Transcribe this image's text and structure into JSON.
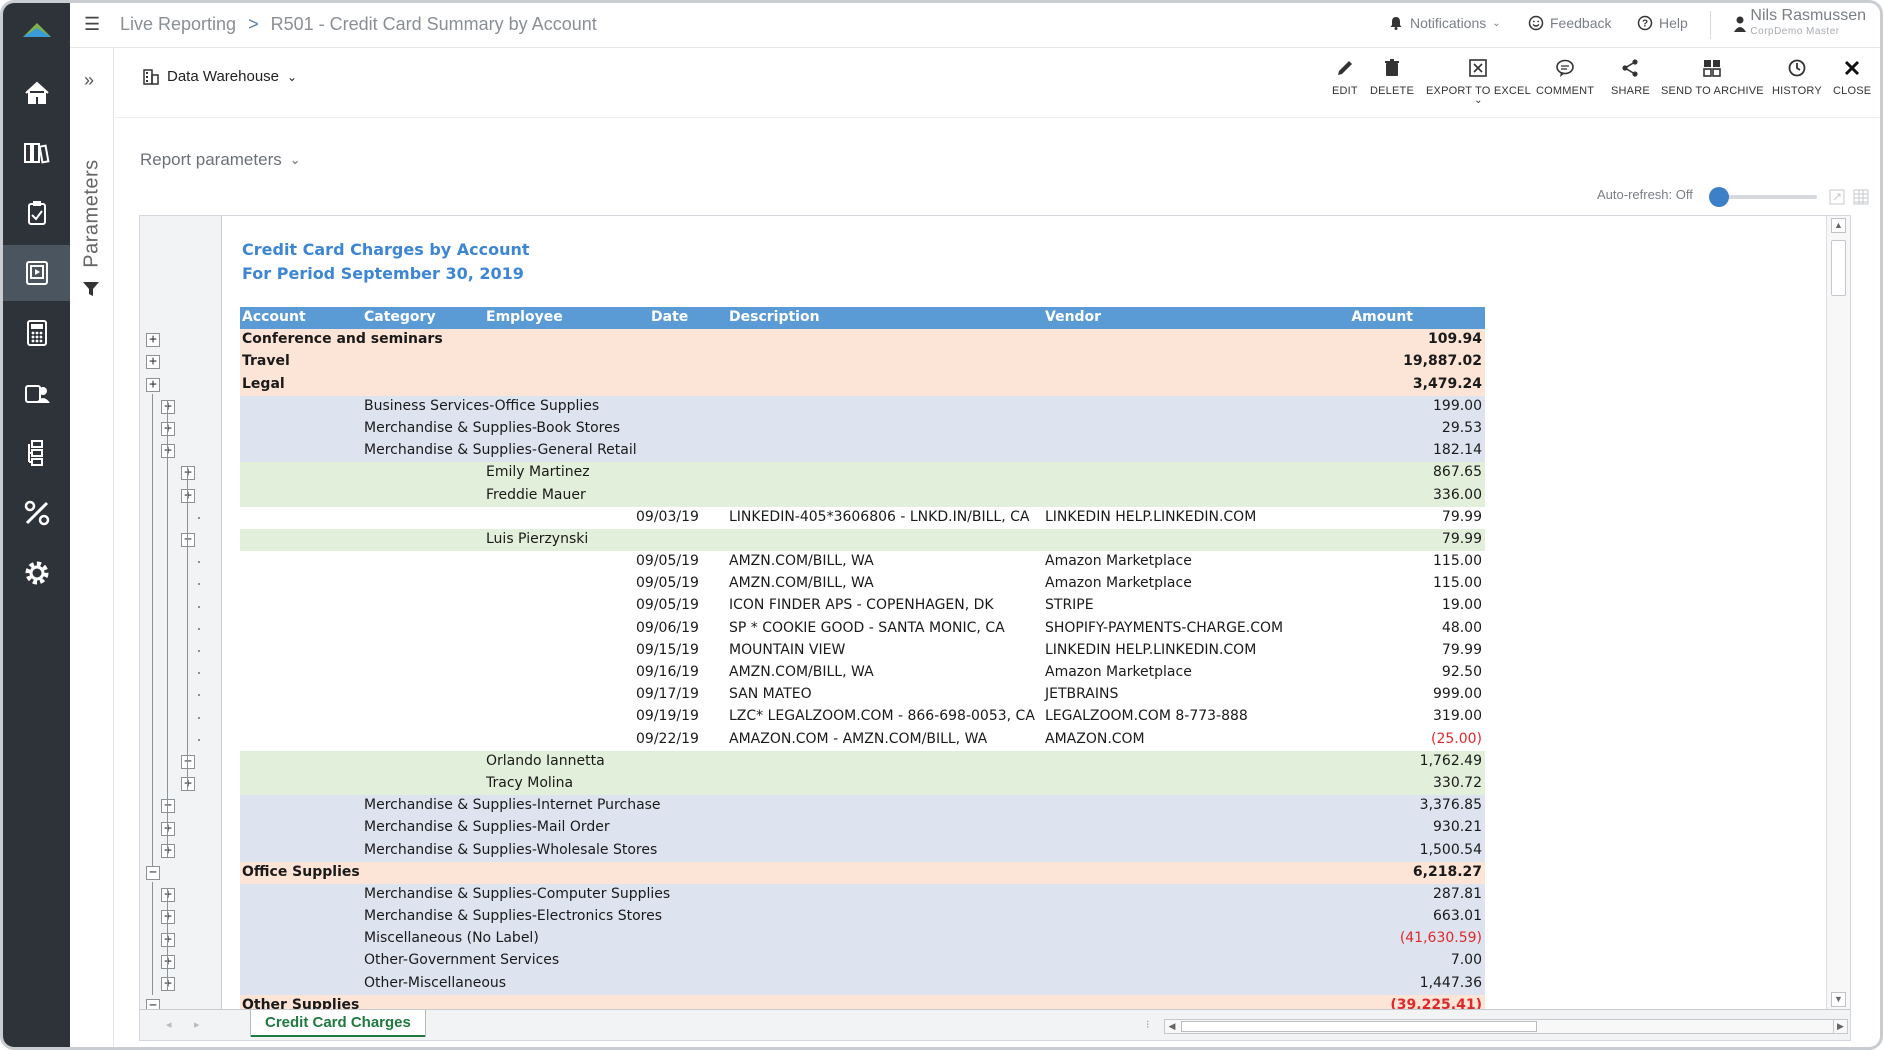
{
  "header": {
    "app_section": "Live Reporting",
    "breadcrumb_sep": ">",
    "report_title": "R501 - Credit Card Summary by Account",
    "notifications": "Notifications",
    "feedback": "Feedback",
    "help": "Help",
    "user_name": "Nils Rasmussen",
    "user_company": "CorpDemo Master"
  },
  "sidebar": {
    "items": [
      "home-icon",
      "library-icon",
      "clipboard-icon",
      "report-icon",
      "calculator-icon",
      "users-icon",
      "hierarchy-icon",
      "tools-icon",
      "settings-icon"
    ],
    "active_index": 3
  },
  "params_panel": {
    "label": "Parameters"
  },
  "toolbar": {
    "datasource": "Data Warehouse",
    "actions": [
      "EDIT",
      "DELETE",
      "EXPORT TO EXCEL",
      "COMMENT",
      "SHARE",
      "SEND TO ARCHIVE",
      "HISTORY",
      "CLOSE"
    ]
  },
  "report_params_label": "Report parameters",
  "auto_refresh_label": "Auto-refresh: Off",
  "report": {
    "title": "Credit Card Charges by Account",
    "subtitle": "For Period September 30, 2019",
    "columns": [
      "Account",
      "Category",
      "Employee",
      "Date",
      "Description",
      "Vendor",
      "Amount"
    ],
    "rows": [
      {
        "level": 1,
        "text": "Conference and seminars",
        "amount": "109.94",
        "neg": false,
        "toggle": "+"
      },
      {
        "level": 1,
        "text": "Travel",
        "amount": "19,887.02",
        "neg": false,
        "toggle": "+"
      },
      {
        "level": 1,
        "text": "Legal",
        "amount": "3,479.24",
        "neg": false,
        "toggle": "+"
      },
      {
        "level": 2,
        "text": "Business Services-Office Supplies",
        "amount": "199.00",
        "neg": false,
        "toggle": "+"
      },
      {
        "level": 2,
        "text": "Merchandise & Supplies-Book Stores",
        "amount": "29.53",
        "neg": false,
        "toggle": "+"
      },
      {
        "level": 2,
        "text": "Merchandise & Supplies-General Retail",
        "amount": "182.14",
        "neg": false,
        "toggle": "+"
      },
      {
        "level": 3,
        "text": "Emily Martinez",
        "amount": "867.65",
        "neg": false,
        "toggle": "+"
      },
      {
        "level": 3,
        "text": "Freddie Mauer",
        "amount": "336.00",
        "neg": false,
        "toggle": "+"
      },
      {
        "level": 4,
        "date": "09/03/19",
        "desc": "LINKEDIN-405*3606806 - LNKD.IN/BILL, CA",
        "vendor": "LINKEDIN   HELP.LINKEDIN.COM",
        "amount": "79.99",
        "neg": false
      },
      {
        "level": 3,
        "text": "Luis Pierzynski",
        "amount": "79.99",
        "neg": false,
        "toggle": "−"
      },
      {
        "level": 4,
        "date": "09/05/19",
        "desc": "AMZN.COM/BILL, WA",
        "vendor": "Amazon Marketplace",
        "amount": "115.00",
        "neg": false
      },
      {
        "level": 4,
        "date": "09/05/19",
        "desc": "AMZN.COM/BILL, WA",
        "vendor": "Amazon Marketplace",
        "amount": "115.00",
        "neg": false
      },
      {
        "level": 4,
        "date": "09/05/19",
        "desc": "ICON FINDER APS - COPENHAGEN, DK",
        "vendor": "STRIPE",
        "amount": "19.00",
        "neg": false
      },
      {
        "level": 4,
        "date": "09/06/19",
        "desc": "SP * COOKIE GOOD - SANTA MONIC, CA",
        "vendor": "SHOPIFY-PAYMENTS-CHARGE.COM",
        "amount": "48.00",
        "neg": false
      },
      {
        "level": 4,
        "date": "09/15/19",
        "desc": "MOUNTAIN VIEW",
        "vendor": "LINKEDIN   HELP.LINKEDIN.COM",
        "amount": "79.99",
        "neg": false
      },
      {
        "level": 4,
        "date": "09/16/19",
        "desc": "AMZN.COM/BILL, WA",
        "vendor": "Amazon Marketplace",
        "amount": "92.50",
        "neg": false
      },
      {
        "level": 4,
        "date": "09/17/19",
        "desc": "SAN MATEO",
        "vendor": "JETBRAINS",
        "amount": "999.00",
        "neg": false
      },
      {
        "level": 4,
        "date": "09/19/19",
        "desc": "LZC* LEGALZOOM.COM - 866-698-0053, CA",
        "vendor": "LEGALZOOM.COM  8-773-888",
        "amount": "319.00",
        "neg": false
      },
      {
        "level": 4,
        "date": "09/22/19",
        "desc": "AMAZON.COM - AMZN.COM/BILL, WA",
        "vendor": "AMAZON.COM",
        "amount": "(25.00)",
        "neg": true
      },
      {
        "level": 3,
        "text": "Orlando Iannetta",
        "amount": "1,762.49",
        "neg": false,
        "toggle": "−"
      },
      {
        "level": 3,
        "text": "Tracy Molina",
        "amount": "330.72",
        "neg": false,
        "toggle": "+"
      },
      {
        "level": 2,
        "text": "Merchandise & Supplies-Internet Purchase",
        "amount": "3,376.85",
        "neg": false,
        "toggle": "−"
      },
      {
        "level": 2,
        "text": "Merchandise & Supplies-Mail Order",
        "amount": "930.21",
        "neg": false,
        "toggle": "+"
      },
      {
        "level": 2,
        "text": "Merchandise & Supplies-Wholesale Stores",
        "amount": "1,500.54",
        "neg": false,
        "toggle": "+"
      },
      {
        "level": 1,
        "text": "Office Supplies",
        "amount": "6,218.27",
        "neg": false,
        "toggle": "−"
      },
      {
        "level": 2,
        "text": "Merchandise & Supplies-Computer Supplies",
        "amount": "287.81",
        "neg": false,
        "toggle": "+"
      },
      {
        "level": 2,
        "text": "Merchandise & Supplies-Electronics Stores",
        "amount": "663.01",
        "neg": false,
        "toggle": "+"
      },
      {
        "level": 2,
        "text": "Miscellaneous (No Label)",
        "amount": "(41,630.59)",
        "neg": true,
        "toggle": "+"
      },
      {
        "level": 2,
        "text": "Other-Government Services",
        "amount": "7.00",
        "neg": false,
        "toggle": "+"
      },
      {
        "level": 2,
        "text": "Other-Miscellaneous",
        "amount": "1,447.36",
        "neg": false,
        "toggle": "+"
      },
      {
        "level": 1,
        "text": "Other Supplies",
        "amount": "(39,225.41)",
        "neg": true,
        "toggle": "−"
      }
    ]
  },
  "sheet_tab": "Credit Card Charges",
  "colors": {
    "header_blue": "#5b9bd5",
    "account_bg": "#fce4d6",
    "category_bg": "#dde4f0",
    "employee_bg": "#e2efda",
    "negative": "#e0282b",
    "title_blue": "#3d86d4",
    "tab_green": "#1e7a3e",
    "nav_bg": "#2d3339"
  }
}
